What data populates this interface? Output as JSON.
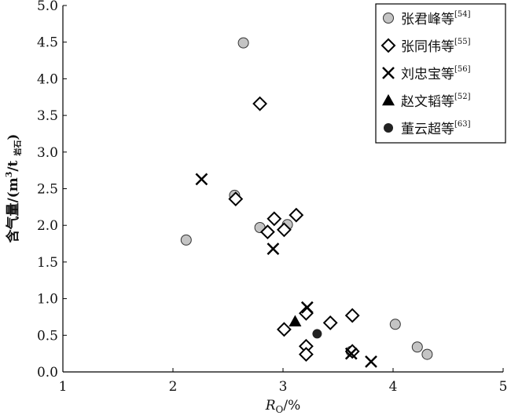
{
  "chart_data": {
    "type": "scatter",
    "xlabel": {
      "main": "R",
      "sub": "O",
      "end": "/%"
    },
    "ylabel": {
      "main": "含气量/(m",
      "sup": "3",
      "mid": "/t ",
      "sub": "岩石",
      "end": ")"
    },
    "xlim": [
      1,
      5
    ],
    "xticks": [
      1,
      2,
      3,
      4,
      5
    ],
    "ylim": [
      0,
      5
    ],
    "yticks": [
      {
        "value": 0,
        "label": "0.0"
      },
      {
        "value": 0.5,
        "label": "0.5"
      },
      {
        "value": 1,
        "label": "1.0"
      },
      {
        "value": 1.5,
        "label": "1.5"
      },
      {
        "value": 2,
        "label": "2.0"
      },
      {
        "value": 2.5,
        "label": "2.5"
      },
      {
        "value": 3,
        "label": "3.0"
      },
      {
        "value": 3.5,
        "label": "3.5"
      },
      {
        "value": 4,
        "label": "4.0"
      },
      {
        "value": 4.5,
        "label": "4.5"
      },
      {
        "value": 5,
        "label": "5.0"
      }
    ],
    "legend": "upper right",
    "series": [
      {
        "name": "张君峰等",
        "citation": "[54]",
        "marker": "circle",
        "color": "#c4c4c4",
        "x": [
          2.64,
          2.56,
          2.12,
          2.79,
          3.04,
          4.02,
          4.22,
          4.31,
          3.62
        ],
        "values": [
          4.49,
          2.41,
          1.8,
          1.97,
          2.01,
          0.65,
          0.34,
          0.24,
          0.28
        ]
      },
      {
        "name": "张同伟等",
        "citation": "[55]",
        "marker": "diamond",
        "color": "#000000",
        "x": [
          2.79,
          2.57,
          2.92,
          3.12,
          2.86,
          3.01,
          3.01,
          3.21,
          3.43,
          3.63,
          3.21,
          3.21,
          3.63
        ],
        "values": [
          3.66,
          2.36,
          2.09,
          2.14,
          1.91,
          1.94,
          0.58,
          0.8,
          0.67,
          0.77,
          0.35,
          0.24,
          0.28
        ]
      },
      {
        "name": "刘忠宝等",
        "citation": "[56]",
        "marker": "x",
        "color": "#000000",
        "x": [
          2.26,
          2.91,
          3.22,
          3.62,
          3.8
        ],
        "values": [
          2.63,
          1.68,
          0.88,
          0.25,
          0.14
        ]
      },
      {
        "name": "赵文韬等",
        "citation": "[52]",
        "marker": "triangle",
        "color": "#000000",
        "x": [
          3.11
        ],
        "values": [
          0.69
        ]
      },
      {
        "name": "董云超等",
        "citation": "[63]",
        "marker": "dot",
        "color": "#222222",
        "x": [
          3.31
        ],
        "values": [
          0.52
        ]
      }
    ]
  }
}
